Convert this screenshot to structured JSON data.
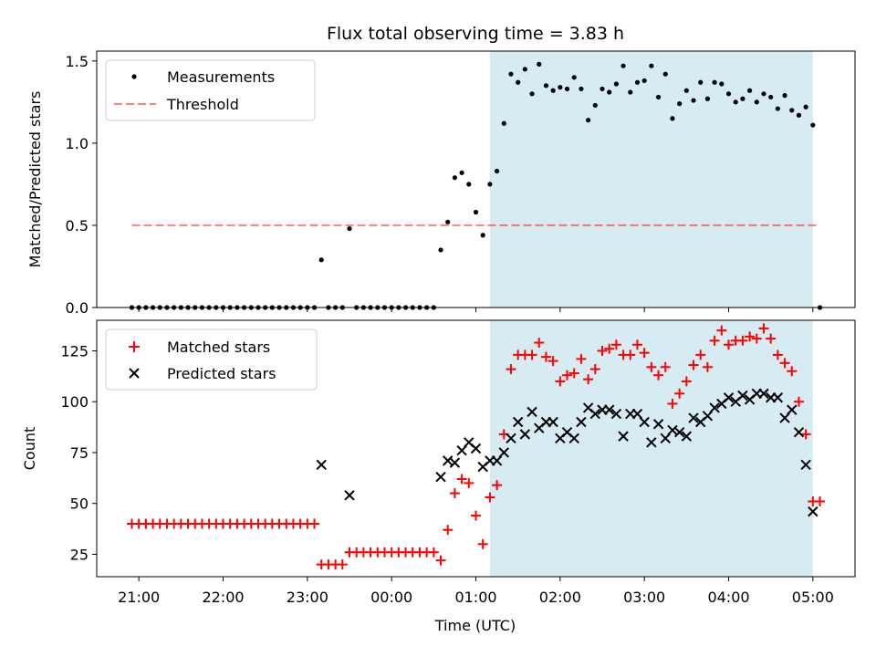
{
  "title": "Flux total observing time = 3.83 h",
  "shade_color": "#add8e6",
  "chart_data": [
    {
      "type": "scatter",
      "ylabel": "Matched/Predicted stars",
      "xlim": [
        "20:30",
        "05:30"
      ],
      "ylim": [
        0,
        1.56
      ],
      "yticks": [
        "0.0",
        "0.5",
        "1.0",
        "1.5"
      ],
      "legend": "top-left",
      "shaded_region": [
        "01:10",
        "05:00"
      ],
      "threshold": {
        "name": "Threshold",
        "value": 0.5,
        "x_range": [
          "20:55",
          "05:05"
        ],
        "color": "#ff0000",
        "opacity": 0.5
      },
      "series": [
        {
          "name": "Measurements",
          "color": "#000000",
          "points": [
            [
              "20:55",
              0
            ],
            [
              "21:00",
              0
            ],
            [
              "21:05",
              0
            ],
            [
              "21:10",
              0
            ],
            [
              "21:15",
              0
            ],
            [
              "21:20",
              0
            ],
            [
              "21:25",
              0
            ],
            [
              "21:30",
              0
            ],
            [
              "21:35",
              0
            ],
            [
              "21:40",
              0
            ],
            [
              "21:45",
              0
            ],
            [
              "21:50",
              0
            ],
            [
              "21:55",
              0
            ],
            [
              "22:00",
              0
            ],
            [
              "22:05",
              0
            ],
            [
              "22:10",
              0
            ],
            [
              "22:15",
              0
            ],
            [
              "22:20",
              0
            ],
            [
              "22:25",
              0
            ],
            [
              "22:30",
              0
            ],
            [
              "22:35",
              0
            ],
            [
              "22:40",
              0
            ],
            [
              "22:45",
              0
            ],
            [
              "22:50",
              0
            ],
            [
              "22:55",
              0
            ],
            [
              "23:00",
              0
            ],
            [
              "23:05",
              0
            ],
            [
              "23:10",
              0.29
            ],
            [
              "23:15",
              0
            ],
            [
              "23:20",
              0
            ],
            [
              "23:25",
              0
            ],
            [
              "23:30",
              0.48
            ],
            [
              "23:35",
              0
            ],
            [
              "23:40",
              0
            ],
            [
              "23:45",
              0
            ],
            [
              "23:50",
              0
            ],
            [
              "23:55",
              0
            ],
            [
              "00:00",
              0
            ],
            [
              "00:05",
              0
            ],
            [
              "00:10",
              0
            ],
            [
              "00:15",
              0
            ],
            [
              "00:20",
              0
            ],
            [
              "00:25",
              0
            ],
            [
              "00:30",
              0
            ],
            [
              "00:35",
              0.35
            ],
            [
              "00:40",
              0.52
            ],
            [
              "00:45",
              0.79
            ],
            [
              "00:50",
              0.82
            ],
            [
              "00:55",
              0.75
            ],
            [
              "01:00",
              0.58
            ],
            [
              "01:05",
              0.44
            ],
            [
              "01:10",
              0.75
            ],
            [
              "01:15",
              0.83
            ],
            [
              "01:20",
              1.12
            ],
            [
              "01:25",
              1.42
            ],
            [
              "01:30",
              1.37
            ],
            [
              "01:35",
              1.45
            ],
            [
              "01:40",
              1.3
            ],
            [
              "01:45",
              1.48
            ],
            [
              "01:50",
              1.35
            ],
            [
              "01:55",
              1.32
            ],
            [
              "02:00",
              1.34
            ],
            [
              "02:05",
              1.33
            ],
            [
              "02:10",
              1.4
            ],
            [
              "02:15",
              1.33
            ],
            [
              "02:20",
              1.14
            ],
            [
              "02:25",
              1.23
            ],
            [
              "02:30",
              1.33
            ],
            [
              "02:35",
              1.31
            ],
            [
              "02:40",
              1.36
            ],
            [
              "02:45",
              1.47
            ],
            [
              "02:50",
              1.31
            ],
            [
              "02:55",
              1.37
            ],
            [
              "03:00",
              1.38
            ],
            [
              "03:05",
              1.47
            ],
            [
              "03:10",
              1.28
            ],
            [
              "03:15",
              1.42
            ],
            [
              "03:20",
              1.15
            ],
            [
              "03:25",
              1.24
            ],
            [
              "03:30",
              1.32
            ],
            [
              "03:35",
              1.26
            ],
            [
              "03:40",
              1.37
            ],
            [
              "03:45",
              1.27
            ],
            [
              "03:50",
              1.37
            ],
            [
              "03:55",
              1.36
            ],
            [
              "04:00",
              1.3
            ],
            [
              "04:05",
              1.25
            ],
            [
              "04:10",
              1.27
            ],
            [
              "04:15",
              1.32
            ],
            [
              "04:20",
              1.25
            ],
            [
              "04:25",
              1.3
            ],
            [
              "04:30",
              1.28
            ],
            [
              "04:35",
              1.21
            ],
            [
              "04:40",
              1.29
            ],
            [
              "04:45",
              1.2
            ],
            [
              "04:50",
              1.17
            ],
            [
              "04:55",
              1.22
            ],
            [
              "05:00",
              1.11
            ],
            [
              "05:05",
              0
            ]
          ]
        }
      ]
    },
    {
      "type": "scatter",
      "xlabel": "Time (UTC)",
      "ylabel": "Count",
      "xlim": [
        "20:30",
        "05:30"
      ],
      "ylim": [
        14,
        140
      ],
      "xticks": [
        "21:00",
        "22:00",
        "23:00",
        "00:00",
        "01:00",
        "02:00",
        "03:00",
        "04:00",
        "05:00"
      ],
      "yticks": [
        "25",
        "50",
        "75",
        "100",
        "125"
      ],
      "legend": "top-left",
      "shaded_region": [
        "01:10",
        "05:00"
      ],
      "series": [
        {
          "name": "Matched stars",
          "color": "#ff0000",
          "marker": "+",
          "points": [
            [
              "20:55",
              40
            ],
            [
              "21:00",
              40
            ],
            [
              "21:05",
              40
            ],
            [
              "21:10",
              40
            ],
            [
              "21:15",
              40
            ],
            [
              "21:20",
              40
            ],
            [
              "21:25",
              40
            ],
            [
              "21:30",
              40
            ],
            [
              "21:35",
              40
            ],
            [
              "21:40",
              40
            ],
            [
              "21:45",
              40
            ],
            [
              "21:50",
              40
            ],
            [
              "21:55",
              40
            ],
            [
              "22:00",
              40
            ],
            [
              "22:05",
              40
            ],
            [
              "22:10",
              40
            ],
            [
              "22:15",
              40
            ],
            [
              "22:20",
              40
            ],
            [
              "22:25",
              40
            ],
            [
              "22:30",
              40
            ],
            [
              "22:35",
              40
            ],
            [
              "22:40",
              40
            ],
            [
              "22:45",
              40
            ],
            [
              "22:50",
              40
            ],
            [
              "22:55",
              40
            ],
            [
              "23:00",
              40
            ],
            [
              "23:05",
              40
            ],
            [
              "23:10",
              20
            ],
            [
              "23:15",
              20
            ],
            [
              "23:20",
              20
            ],
            [
              "23:25",
              20
            ],
            [
              "23:30",
              26
            ],
            [
              "23:35",
              26
            ],
            [
              "23:40",
              26
            ],
            [
              "23:45",
              26
            ],
            [
              "23:50",
              26
            ],
            [
              "23:55",
              26
            ],
            [
              "00:00",
              26
            ],
            [
              "00:05",
              26
            ],
            [
              "00:10",
              26
            ],
            [
              "00:15",
              26
            ],
            [
              "00:20",
              26
            ],
            [
              "00:25",
              26
            ],
            [
              "00:30",
              26
            ],
            [
              "00:35",
              22
            ],
            [
              "00:40",
              37
            ],
            [
              "00:45",
              55
            ],
            [
              "00:50",
              62
            ],
            [
              "00:55",
              60
            ],
            [
              "01:00",
              44
            ],
            [
              "01:05",
              30
            ],
            [
              "01:10",
              53
            ],
            [
              "01:15",
              59
            ],
            [
              "01:20",
              84
            ],
            [
              "01:25",
              116
            ],
            [
              "01:30",
              123
            ],
            [
              "01:35",
              123
            ],
            [
              "01:40",
              123
            ],
            [
              "01:45",
              129
            ],
            [
              "01:50",
              122
            ],
            [
              "01:55",
              120
            ],
            [
              "02:00",
              110
            ],
            [
              "02:05",
              113
            ],
            [
              "02:10",
              114
            ],
            [
              "02:15",
              121
            ],
            [
              "02:20",
              111
            ],
            [
              "02:25",
              116
            ],
            [
              "02:30",
              125
            ],
            [
              "02:35",
              126
            ],
            [
              "02:40",
              128
            ],
            [
              "02:45",
              123
            ],
            [
              "02:50",
              123
            ],
            [
              "02:55",
              128
            ],
            [
              "03:00",
              124
            ],
            [
              "03:05",
              117
            ],
            [
              "03:10",
              113
            ],
            [
              "03:15",
              117
            ],
            [
              "03:20",
              99
            ],
            [
              "03:25",
              104
            ],
            [
              "03:30",
              110
            ],
            [
              "03:35",
              118
            ],
            [
              "03:40",
              123
            ],
            [
              "03:45",
              117
            ],
            [
              "03:50",
              130
            ],
            [
              "03:55",
              135
            ],
            [
              "04:00",
              128
            ],
            [
              "04:05",
              130
            ],
            [
              "04:10",
              130
            ],
            [
              "04:15",
              132
            ],
            [
              "04:20",
              131
            ],
            [
              "04:25",
              136
            ],
            [
              "04:30",
              131
            ],
            [
              "04:35",
              123
            ],
            [
              "04:40",
              119
            ],
            [
              "04:45",
              115
            ],
            [
              "04:50",
              100
            ],
            [
              "04:55",
              84
            ],
            [
              "05:00",
              51
            ],
            [
              "05:05",
              51
            ]
          ]
        },
        {
          "name": "Predicted stars",
          "color": "#000000",
          "marker": "x",
          "points": [
            [
              "23:10",
              69
            ],
            [
              "23:30",
              54
            ],
            [
              "00:35",
              63
            ],
            [
              "00:40",
              71
            ],
            [
              "00:45",
              70
            ],
            [
              "00:50",
              76
            ],
            [
              "00:55",
              80
            ],
            [
              "01:00",
              77
            ],
            [
              "01:05",
              68
            ],
            [
              "01:10",
              71
            ],
            [
              "01:15",
              71
            ],
            [
              "01:20",
              75
            ],
            [
              "01:25",
              82
            ],
            [
              "01:30",
              90
            ],
            [
              "01:35",
              84
            ],
            [
              "01:40",
              95
            ],
            [
              "01:45",
              87
            ],
            [
              "01:50",
              90
            ],
            [
              "01:55",
              90
            ],
            [
              "02:00",
              82
            ],
            [
              "02:05",
              85
            ],
            [
              "02:10",
              82
            ],
            [
              "02:15",
              90
            ],
            [
              "02:20",
              97
            ],
            [
              "02:25",
              94
            ],
            [
              "02:30",
              96
            ],
            [
              "02:35",
              96
            ],
            [
              "02:40",
              94
            ],
            [
              "02:45",
              83
            ],
            [
              "02:50",
              94
            ],
            [
              "02:55",
              94
            ],
            [
              "03:00",
              90
            ],
            [
              "03:05",
              80
            ],
            [
              "03:10",
              89
            ],
            [
              "03:15",
              82
            ],
            [
              "03:20",
              86
            ],
            [
              "03:25",
              85
            ],
            [
              "03:30",
              83
            ],
            [
              "03:35",
              92
            ],
            [
              "03:40",
              90
            ],
            [
              "03:45",
              93
            ],
            [
              "03:50",
              97
            ],
            [
              "03:55",
              99
            ],
            [
              "04:00",
              102
            ],
            [
              "04:05",
              100
            ],
            [
              "04:10",
              103
            ],
            [
              "04:15",
              101
            ],
            [
              "04:20",
              104
            ],
            [
              "04:25",
              104
            ],
            [
              "04:30",
              102
            ],
            [
              "04:35",
              102
            ],
            [
              "04:40",
              92
            ],
            [
              "04:45",
              96
            ],
            [
              "04:50",
              85
            ],
            [
              "04:55",
              69
            ],
            [
              "05:00",
              46
            ]
          ]
        }
      ]
    }
  ]
}
